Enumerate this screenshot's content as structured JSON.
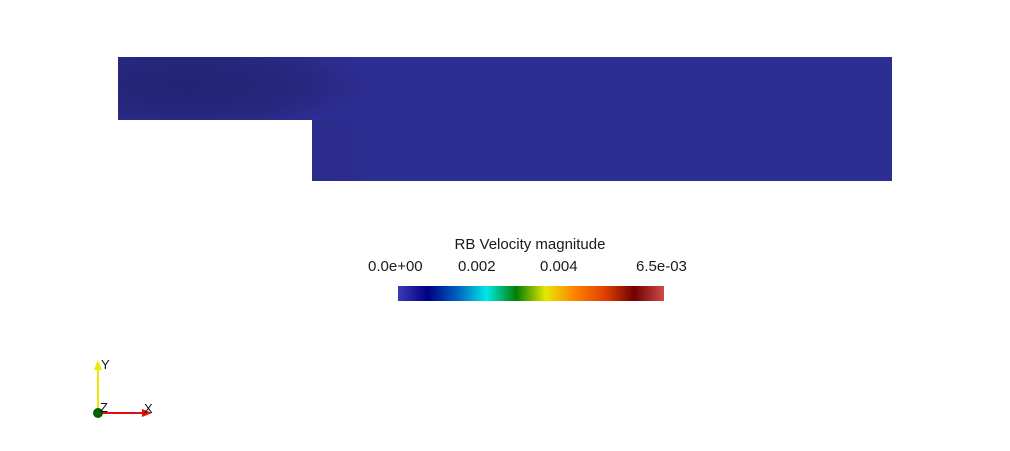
{
  "colorbar": {
    "title": "RB Velocity magnitude",
    "labels": [
      "0.0e+00",
      "0.002",
      "0.004",
      "6.5e-03"
    ],
    "colormap": "Jet",
    "colors": [
      "#3b3bb8",
      "#000080",
      "#0060c0",
      "#00e8e8",
      "#008000",
      "#e8e800",
      "#ff8000",
      "#e04000",
      "#700000",
      "#d24a4a"
    ],
    "field_color": "#2d2e93",
    "field_dark_color": "#24267c"
  },
  "axes": {
    "x": "X",
    "y": "Y",
    "z": "Z",
    "x_color": "#e01010",
    "y_color": "#e8e800",
    "z_color": "#006000"
  }
}
